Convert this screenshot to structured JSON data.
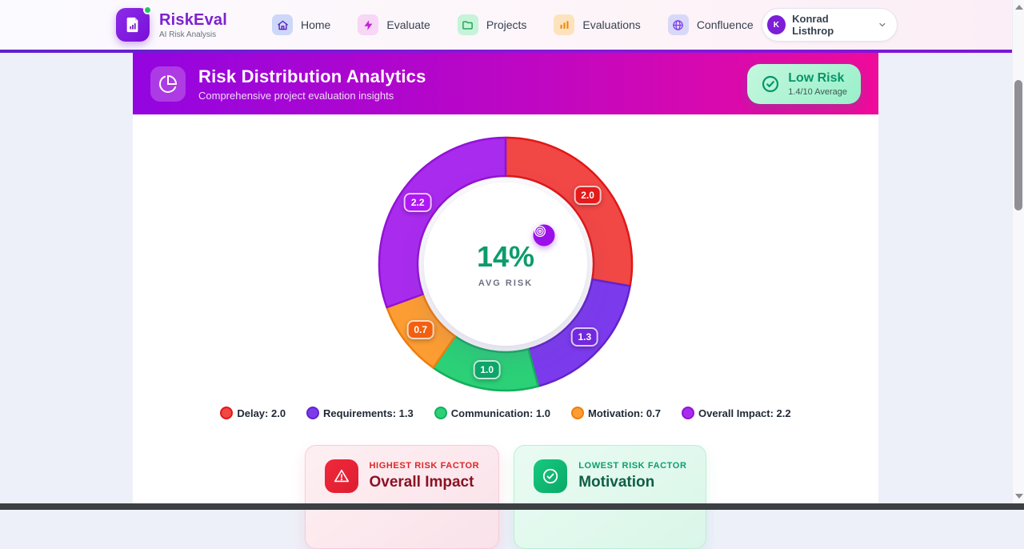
{
  "brand": {
    "name": "RiskEval",
    "tagline": "AI Risk Analysis"
  },
  "nav": {
    "items": [
      {
        "label": "Home",
        "icon": "home-icon"
      },
      {
        "label": "Evaluate",
        "icon": "lightning-icon"
      },
      {
        "label": "Projects",
        "icon": "folder-icon"
      },
      {
        "label": "Evaluations",
        "icon": "bar-chart-icon"
      },
      {
        "label": "Confluence",
        "icon": "globe-icon"
      }
    ]
  },
  "user": {
    "name": "Konrad Listhrop",
    "initial": "K"
  },
  "header": {
    "title": "Risk Distribution Analytics",
    "subtitle": "Comprehensive project evaluation insights",
    "badge": {
      "label": "Low Risk",
      "sublabel": "1.4/10 Average"
    }
  },
  "chart_data": {
    "type": "pie",
    "subtype": "donut",
    "title": "Risk Distribution Analytics",
    "center_value": "14%",
    "center_label": "AVG RISK",
    "start_angle_deg": 0,
    "direction": "clockwise",
    "legend_position": "bottom",
    "total": 7.2,
    "segments": [
      {
        "label": "Delay",
        "value": 2.0,
        "display": "2.0",
        "color": "#f14745",
        "stroke": "#e01717",
        "badge_bg": "#e31b1b"
      },
      {
        "label": "Requirements",
        "value": 1.3,
        "display": "1.3",
        "color": "#7c3aed",
        "stroke": "#6423c9",
        "badge_bg": "#7228dd"
      },
      {
        "label": "Communication",
        "value": 1.0,
        "display": "1.0",
        "color": "#2bd077",
        "stroke": "#15ae5c",
        "badge_bg": "#0da568"
      },
      {
        "label": "Motivation",
        "value": 0.7,
        "display": "0.7",
        "color": "#fb9d33",
        "stroke": "#ef7d0d",
        "badge_bg": "#f2600f"
      },
      {
        "label": "Overall Impact",
        "value": 2.2,
        "display": "2.2",
        "color": "#a92bee",
        "stroke": "#9213d6",
        "badge_bg": "#ae19f3"
      }
    ]
  },
  "cards": {
    "highest": {
      "kicker": "HIGHEST RISK FACTOR",
      "title": "Overall Impact"
    },
    "lowest": {
      "kicker": "LOWEST RISK FACTOR",
      "title": "Motivation"
    }
  },
  "colors": {
    "accent_purple": "#7e22ce",
    "banner_left": "#9305e0",
    "banner_right": "#ef0b9b",
    "risk_green": "#059669"
  }
}
